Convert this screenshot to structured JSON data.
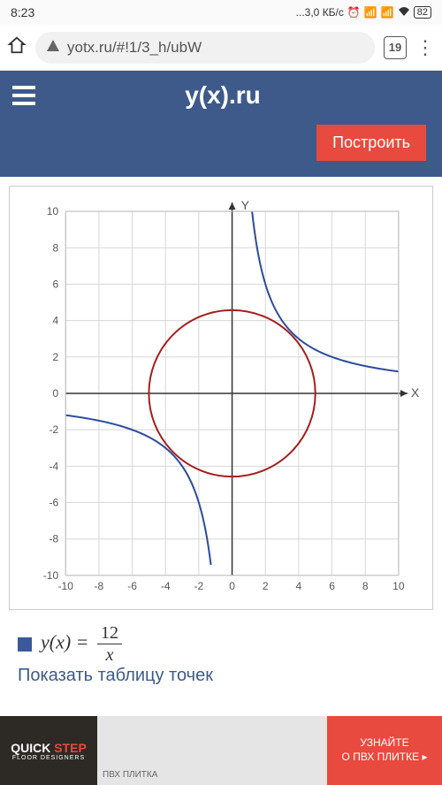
{
  "status": {
    "time": "8:23",
    "speed": "...3,0 КБ/с",
    "battery": "82"
  },
  "browser": {
    "url": "yotx.ru/#!1/3_h/ubW",
    "tab_count": "19"
  },
  "header": {
    "site_title": "y(x).ru",
    "build_label": "Построить"
  },
  "chart": {
    "x_label": "X",
    "y_label": "Y",
    "xlim": [
      -10,
      10
    ],
    "ylim": [
      -10,
      10
    ],
    "tick_step": 2,
    "x_ticks": [
      -10,
      -8,
      -6,
      -4,
      -2,
      0,
      2,
      4,
      6,
      8,
      10
    ],
    "y_ticks": [
      -10,
      -8,
      -6,
      -4,
      -2,
      0,
      2,
      4,
      6,
      8,
      10
    ],
    "grid_color": "#d8d8d8",
    "axis_color": "#333333",
    "background_color": "#ffffff",
    "series": [
      {
        "type": "hyperbola",
        "name": "12/x",
        "color": "#2e4c9b",
        "width": 2,
        "k": 12
      },
      {
        "type": "circle",
        "name": "circle-r5",
        "color": "#a32020",
        "width": 2,
        "cx": 0,
        "cy": 0,
        "r": 5
      }
    ]
  },
  "legend": {
    "swatch_color": "#3b5998",
    "func_lhs": "y(x) =",
    "frac_num": "12",
    "frac_den": "x"
  },
  "links": {
    "show_table": "Показать таблицу точек"
  },
  "ad": {
    "brand_top": "QUICK",
    "brand_bottom": "STEP",
    "mid_text": "ПВХ ПЛИТКА",
    "cta_line1": "УЗНАЙТЕ",
    "cta_line2": "О ПВХ ПЛИТКЕ",
    "cta_arrow": "▸"
  }
}
